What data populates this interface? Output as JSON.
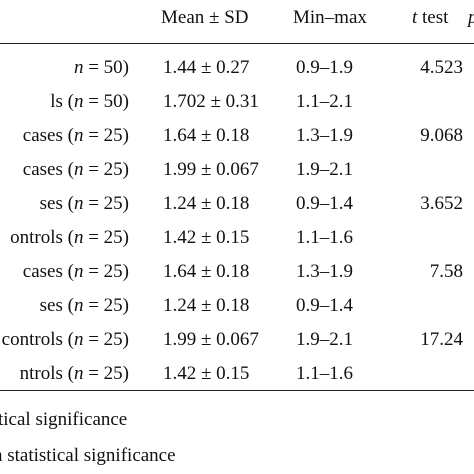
{
  "table": {
    "headers": {
      "mean_sd": "Mean ± SD",
      "min_max": "Min–max",
      "t_test_italic": "t",
      "t_test_rest": " test",
      "p": "p"
    },
    "rows": [
      {
        "label": "n = 50)",
        "mean_sd": "1.44 ± 0.27",
        "min_max": "0.9–1.9",
        "t": "4.523"
      },
      {
        "label": "ls (n = 50)",
        "mean_sd": "1.702 ± 0.31",
        "min_max": "1.1–2.1",
        "t": ""
      },
      {
        "label": "cases (n = 25)",
        "mean_sd": "1.64 ± 0.18",
        "min_max": "1.3–1.9",
        "t": "9.068"
      },
      {
        "label": "cases (n = 25)",
        "mean_sd": "1.99 ± 0.067",
        "min_max": "1.9–2.1",
        "t": ""
      },
      {
        "label": "ses (n = 25)",
        "mean_sd": "1.24 ± 0.18",
        "min_max": "0.9–1.4",
        "t": "3.652"
      },
      {
        "label": "ontrols (n = 25)",
        "mean_sd": "1.42 ± 0.15",
        "min_max": "1.1–1.6",
        "t": ""
      },
      {
        "label": "cases (n = 25)",
        "mean_sd": "1.64 ± 0.18",
        "min_max": "1.3–1.9",
        "t": "7.58"
      },
      {
        "label": "ses (n = 25)",
        "mean_sd": "1.24 ± 0.18",
        "min_max": "0.9–1.4",
        "t": ""
      },
      {
        "label": "controls (n = 25)",
        "mean_sd": "1.99 ± 0.067",
        "min_max": "1.9–2.1",
        "t": "17.24"
      },
      {
        "label": "ntrols (n = 25)",
        "mean_sd": "1.42 ± 0.15",
        "min_max": "1.1–1.6",
        "t": ""
      }
    ]
  },
  "footnotes": [
    "tical significance",
    "statistical significance"
  ]
}
